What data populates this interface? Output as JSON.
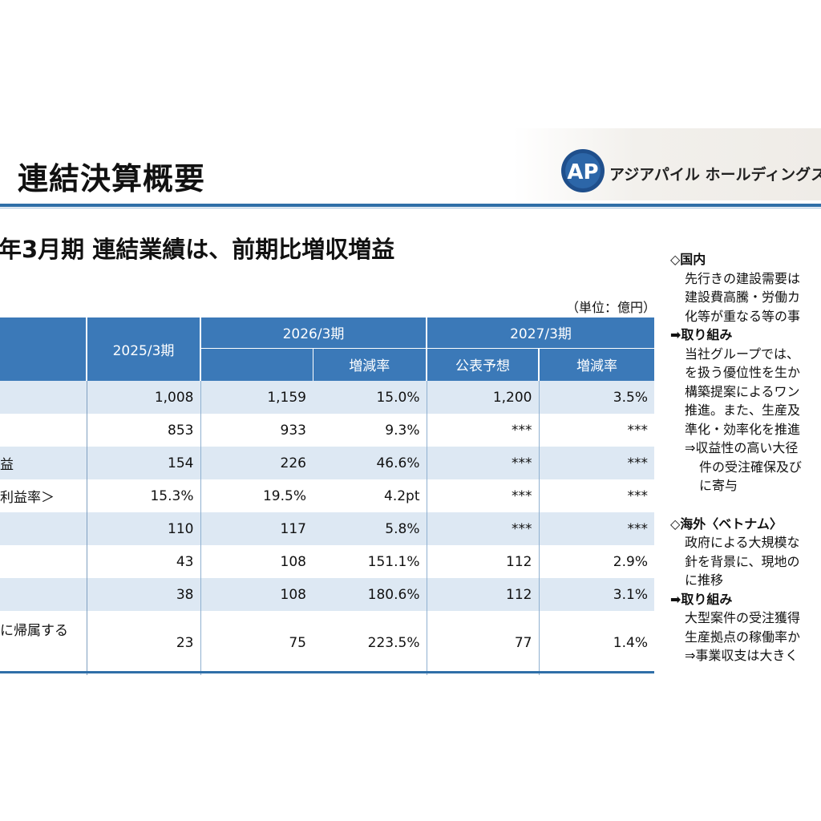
{
  "header": {
    "title": "連結決算概要",
    "logo_mark": "AP",
    "logo_text": "アジアパイル ホールディングス株"
  },
  "headline": "年3月期 連結業績は、前期比増収増益",
  "unit": "（単位：億円）",
  "table": {
    "col_2025": "2025/3期",
    "col_2026": "2026/3期",
    "col_2027": "2027/3期",
    "sub_change_2026": "増減率",
    "sub_forecast_2027": "公表予想",
    "sub_change_2027": "増減率",
    "rows": [
      {
        "label": "",
        "v2025": "1,008",
        "v2026": "1,159",
        "c2026": "15.0%",
        "f2027": "1,200",
        "c2027": "3.5%"
      },
      {
        "label": "",
        "v2025": "853",
        "v2026": "933",
        "c2026": "9.3%",
        "f2027": "***",
        "c2027": "***"
      },
      {
        "label": "益",
        "v2025": "154",
        "v2026": "226",
        "c2026": "46.6%",
        "f2027": "***",
        "c2027": "***"
      },
      {
        "label": "利益率＞",
        "v2025": "15.3%",
        "v2026": "19.5%",
        "c2026": "4.2pt",
        "f2027": "***",
        "c2027": "***"
      },
      {
        "label": "",
        "v2025": "110",
        "v2026": "117",
        "c2026": "5.8%",
        "f2027": "***",
        "c2027": "***"
      },
      {
        "label": "",
        "v2025": "43",
        "v2026": "108",
        "c2026": "151.1%",
        "f2027": "112",
        "c2027": "2.9%"
      },
      {
        "label": "",
        "v2025": "38",
        "v2026": "108",
        "c2026": "180.6%",
        "f2027": "112",
        "c2027": "3.1%"
      },
      {
        "label": "に帰属する",
        "v2025": "23",
        "v2026": "75",
        "c2026": "223.5%",
        "f2027": "77",
        "c2027": "1.4%"
      }
    ]
  },
  "side": {
    "domestic_head": "◇国内",
    "domestic_1": "先行きの建設需要は",
    "domestic_2": "建設費高騰・労働カ",
    "domestic_3": "化等が重なる等の事",
    "domestic_action_head": "➡取り組み",
    "domestic_action_1": "当社グループでは、",
    "domestic_action_2": "を扱う優位性を生か",
    "domestic_action_3": "構築提案によるワン",
    "domestic_action_4": "推進。また、生産及",
    "domestic_action_5": "準化・効率化を推進",
    "domestic_result_1": "⇒収益性の高い大径",
    "domestic_result_2": "件の受注確保及び",
    "domestic_result_3": "に寄与",
    "overseas_head": "◇海外〈ベトナム〉",
    "overseas_1": "政府による大規模な",
    "overseas_2": "針を背景に、現地の",
    "overseas_3": "に推移",
    "overseas_action_head": "➡取り組み",
    "overseas_action_1": "大型案件の受注獲得",
    "overseas_action_2": "生産拠点の稼働率か",
    "overseas_result_1": "⇒事業収支は大きく"
  },
  "colors": {
    "header_blue": "#3b79b8",
    "row_alt": "#dde8f3",
    "rule": "#2f6fa8"
  }
}
